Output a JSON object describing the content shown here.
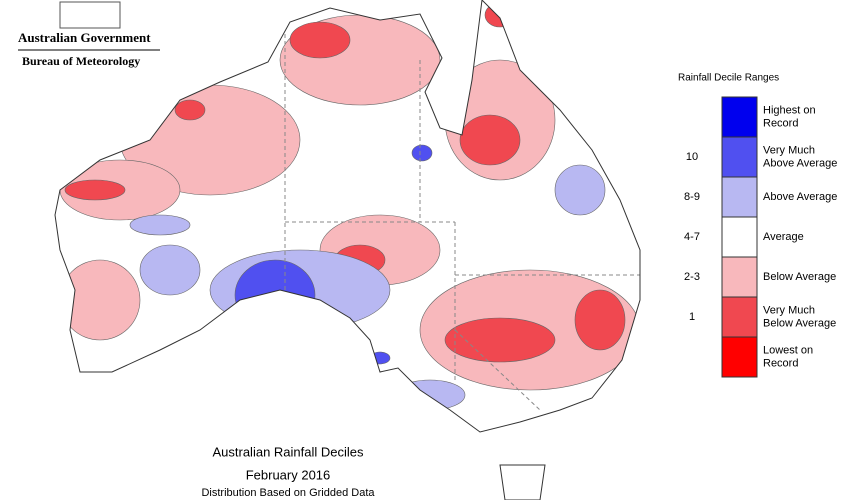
{
  "header": {
    "org": "Australian Government",
    "agency": "Bureau of Meteorology"
  },
  "legend": {
    "title": "Rainfall Decile Ranges",
    "items": [
      {
        "name": "Highest on Record",
        "color": "#0000ee"
      },
      {
        "decile": "10",
        "name": "Very Much Above Average",
        "color": "#5050f0"
      },
      {
        "decile": "8-9",
        "name": "Above Average",
        "color": "#b8b8f2"
      },
      {
        "decile": "4-7",
        "name": "Average",
        "color": "#ffffff"
      },
      {
        "decile": "2-3",
        "name": "Below Average",
        "color": "#f8b8bc"
      },
      {
        "decile": "1",
        "name": "Very Much Below Average",
        "color": "#f04850"
      },
      {
        "name": "Lowest on Record",
        "color": "#ff0000"
      }
    ]
  },
  "map": {
    "title": "Australian Rainfall Deciles",
    "period": "February 2016",
    "subtitle": "Distribution Based on Gridded Data"
  }
}
